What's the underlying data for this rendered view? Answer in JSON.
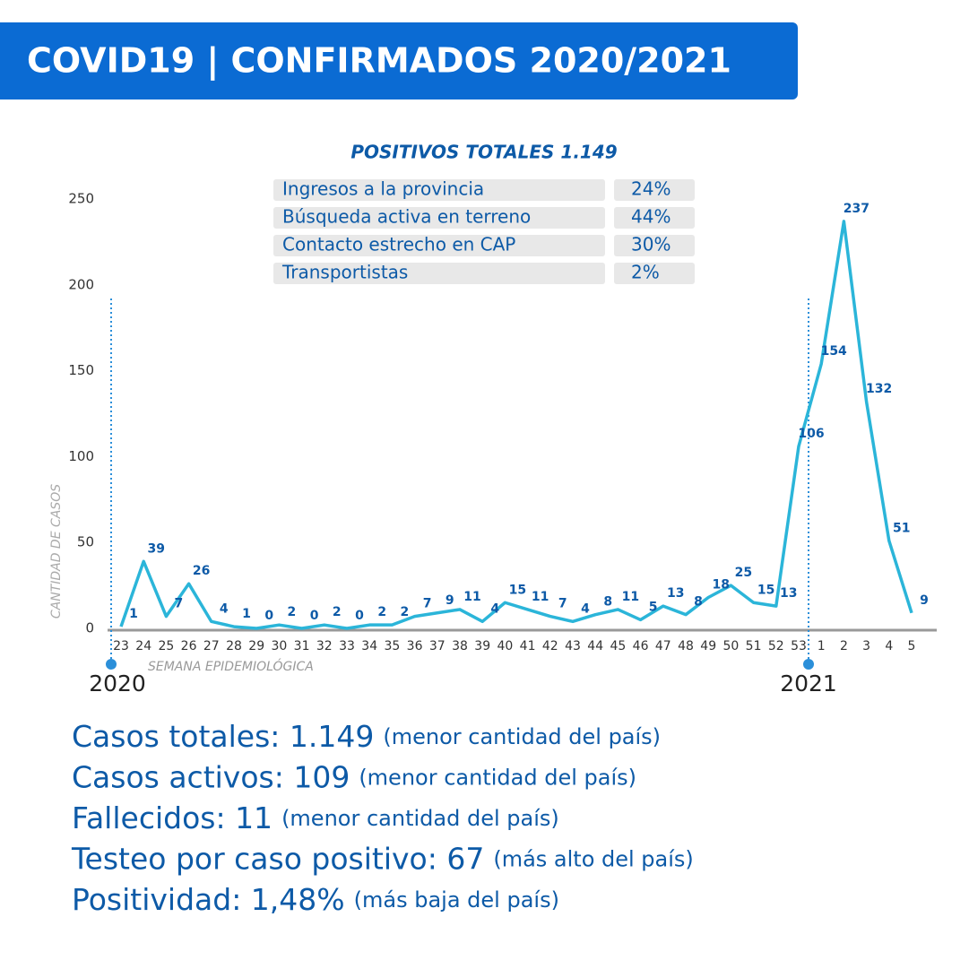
{
  "header": {
    "title": "COVID19 | CONFIRMADOS 2020/2021"
  },
  "chart_data": {
    "type": "line",
    "subtitle": "POSITIVOS TOTALES 1.149",
    "breakdown": [
      {
        "label": "Ingresos a la provincia",
        "share": "24%"
      },
      {
        "label": "Búsqueda activa en terreno",
        "share": "44%"
      },
      {
        "label": "Contacto estrecho en CAP",
        "share": "30%"
      },
      {
        "label": "Transportistas",
        "share": "2%"
      }
    ],
    "y_label": "CANTIDAD DE CASOS",
    "x_label": "SEMANA EPIDEMIOLÓGICA",
    "categories": [
      "23",
      "24",
      "25",
      "26",
      "27",
      "28",
      "29",
      "30",
      "31",
      "32",
      "33",
      "34",
      "35",
      "36",
      "37",
      "38",
      "39",
      "40",
      "41",
      "42",
      "43",
      "44",
      "45",
      "46",
      "47",
      "48",
      "49",
      "50",
      "51",
      "52",
      "53",
      "1",
      "2",
      "3",
      "4",
      "5"
    ],
    "series": [
      {
        "name": "Confirmados",
        "color": "#2bb5d9",
        "values": [
          1,
          39,
          7,
          26,
          4,
          1,
          0,
          2,
          0,
          2,
          0,
          2,
          2,
          7,
          9,
          11,
          4,
          15,
          11,
          7,
          4,
          8,
          11,
          5,
          13,
          8,
          18,
          25,
          15,
          13,
          106,
          154,
          237,
          132,
          51,
          9
        ]
      }
    ],
    "ylim": [
      0,
      250
    ],
    "yticks": [
      0,
      50,
      100,
      150,
      200,
      250
    ],
    "year_markers": [
      {
        "label": "2020",
        "category": "23"
      },
      {
        "label": "2021",
        "category": "53"
      }
    ]
  },
  "stats": [
    {
      "label": "Casos totales: 1.149",
      "note": "(menor cantidad del país)"
    },
    {
      "label": "Casos activos: 109",
      "note": "(menor cantidad del país)"
    },
    {
      "label": "Fallecidos: 11",
      "note": "(menor cantidad del país)"
    },
    {
      "label": "Testeo por caso positivo: 67",
      "note": "(más alto del país)"
    },
    {
      "label": "Positividad: 1,48%",
      "note": "(más baja del país)"
    }
  ]
}
